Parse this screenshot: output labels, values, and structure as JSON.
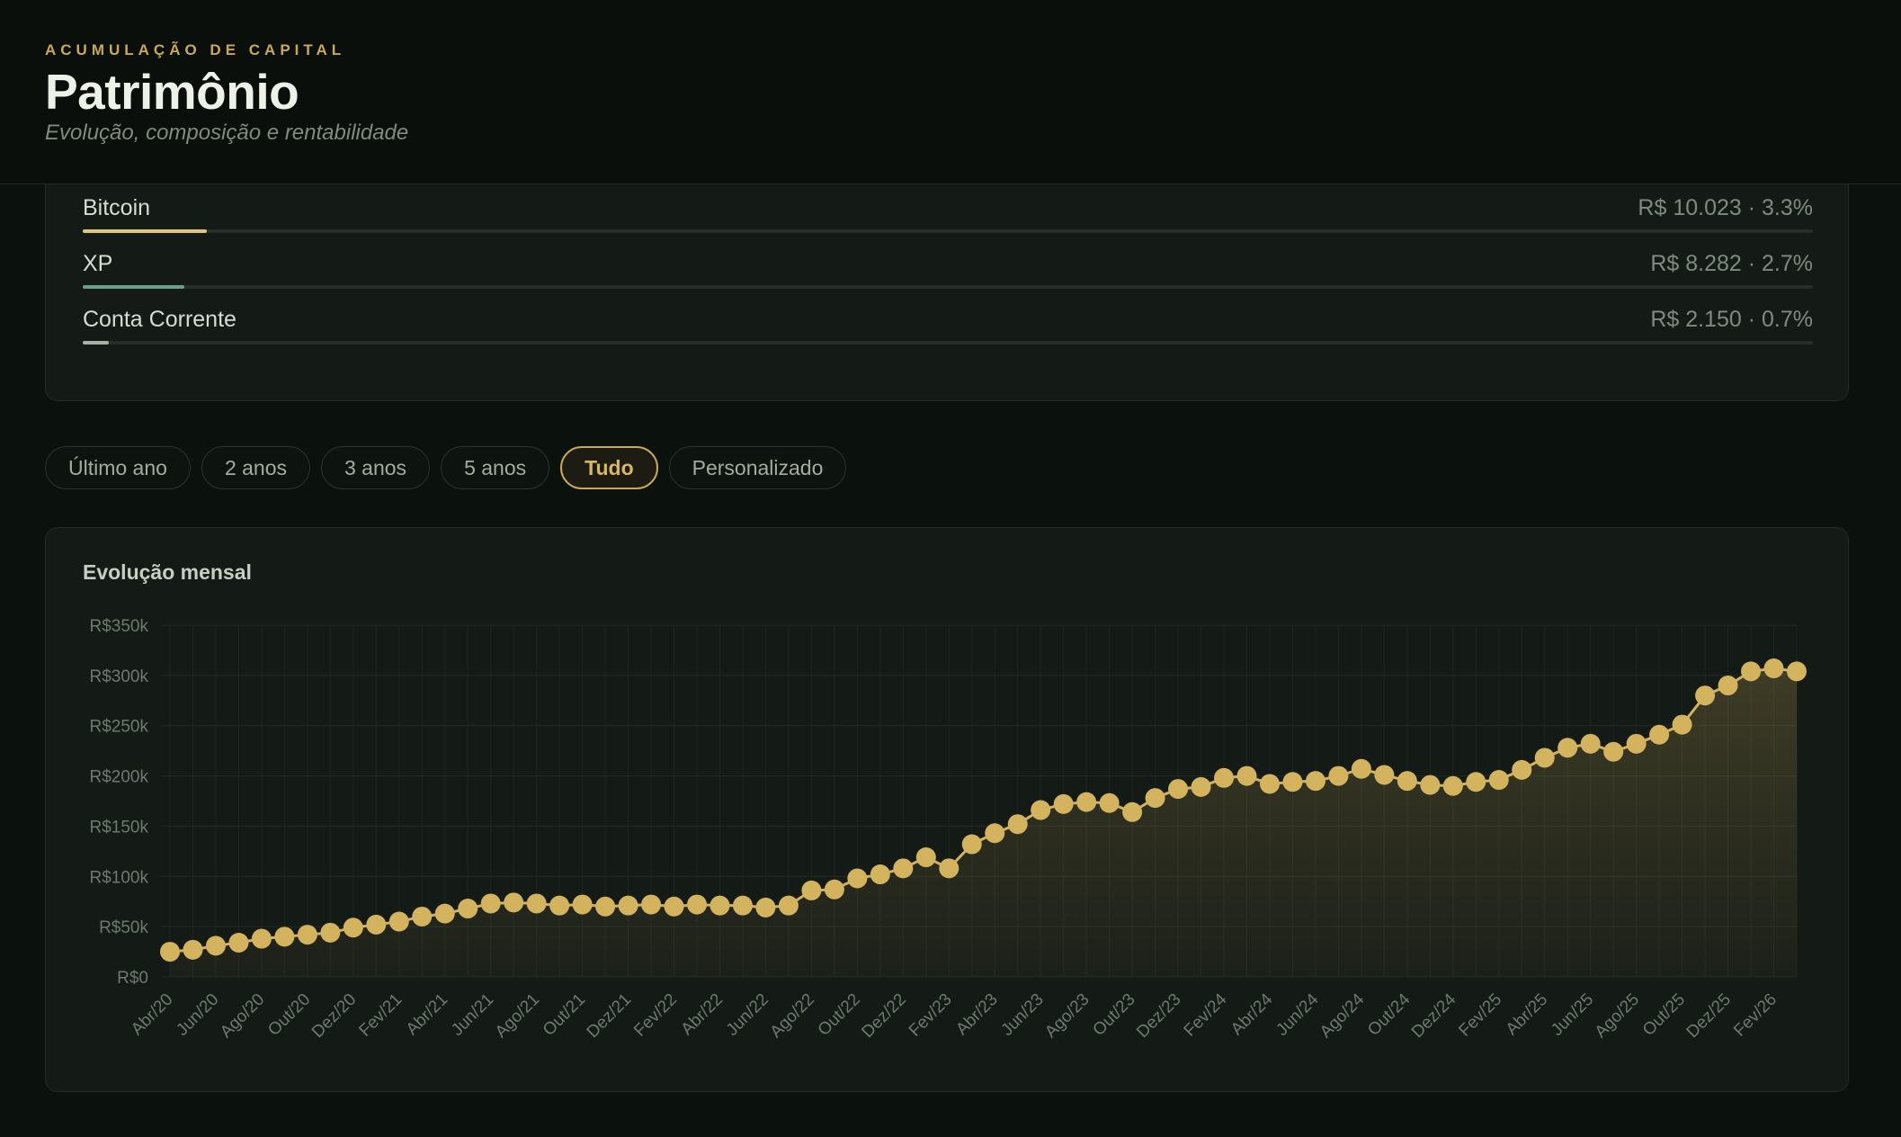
{
  "header": {
    "eyebrow": "ACUMULAÇÃO DE CAPITAL",
    "title": "Patrimônio",
    "subtitle": "Evolução, composição e rentabilidade"
  },
  "composition": [
    {
      "name": "Bitcoin",
      "value": "R$ 10.023 · 3.3%",
      "percent": 3.3,
      "color": "#e0c778"
    },
    {
      "name": "XP",
      "value": "R$ 8.282 · 2.7%",
      "percent": 2.7,
      "color": "#6aa08a"
    },
    {
      "name": "Conta Corrente",
      "value": "R$ 2.150 · 0.7%",
      "percent": 0.7,
      "color": "#a9b0a6"
    }
  ],
  "filters": [
    {
      "label": "Último ano",
      "active": false
    },
    {
      "label": "2 anos",
      "active": false
    },
    {
      "label": "3 anos",
      "active": false
    },
    {
      "label": "5 anos",
      "active": false
    },
    {
      "label": "Tudo",
      "active": true
    },
    {
      "label": "Personalizado",
      "active": false
    }
  ],
  "chart": {
    "title": "Evolução mensal"
  },
  "chart_data": {
    "type": "line",
    "title": "Evolução mensal",
    "color": "#d4b35e",
    "grid": true,
    "ylim": [
      0,
      350000
    ],
    "y_ticks": [
      0,
      50000,
      100000,
      150000,
      200000,
      250000,
      300000,
      350000
    ],
    "y_tick_labels": [
      "R$0",
      "R$50k",
      "R$100k",
      "R$150k",
      "R$200k",
      "R$250k",
      "R$300k",
      "R$350k"
    ],
    "x_tick_labels": [
      "Abr/20",
      "Jun/20",
      "Ago/20",
      "Out/20",
      "Dez/20",
      "Fev/21",
      "Abr/21",
      "Jun/21",
      "Ago/21",
      "Out/21",
      "Dez/21",
      "Fev/22",
      "Abr/22",
      "Jun/22",
      "Ago/22",
      "Out/22",
      "Dez/22",
      "Fev/23",
      "Abr/23",
      "Jun/23",
      "Ago/23",
      "Out/23",
      "Dez/23",
      "Fev/24",
      "Abr/24",
      "Jun/24",
      "Ago/24",
      "Out/24",
      "Dez/24",
      "Fev/25",
      "Abr/25",
      "Jun/25",
      "Ago/25",
      "Out/25",
      "Dez/25",
      "Fev/26"
    ],
    "x_start": "2020-04",
    "values": [
      25000,
      27000,
      31000,
      34000,
      38000,
      40000,
      42000,
      44000,
      49000,
      52000,
      55000,
      60000,
      63000,
      68000,
      73000,
      74000,
      73000,
      71000,
      72000,
      70000,
      71000,
      72000,
      70000,
      72000,
      71000,
      71000,
      69000,
      71000,
      86000,
      87000,
      98000,
      102000,
      108000,
      119000,
      108000,
      132000,
      143000,
      152000,
      166000,
      172000,
      174000,
      173000,
      164000,
      178000,
      187000,
      189000,
      198000,
      200000,
      192000,
      194000,
      195000,
      200000,
      207000,
      201000,
      195000,
      191000,
      190000,
      194000,
      196000,
      206000,
      218000,
      228000,
      232000,
      224000,
      232000,
      241000,
      251000,
      280000,
      290000,
      304000,
      307000,
      304000
    ]
  }
}
